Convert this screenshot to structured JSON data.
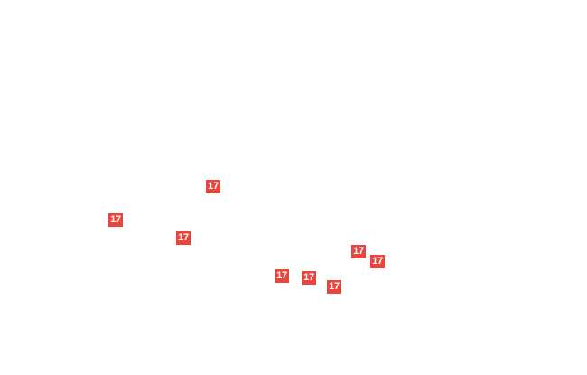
{
  "map": {
    "shield_color": "#e8453c",
    "shield_text_color": "#ffffff",
    "route_shields": [
      {
        "label": "17"
      },
      {
        "label": "17"
      },
      {
        "label": "17"
      },
      {
        "label": "17"
      },
      {
        "label": "17"
      },
      {
        "label": "17"
      },
      {
        "label": "17"
      },
      {
        "label": "17"
      }
    ]
  }
}
